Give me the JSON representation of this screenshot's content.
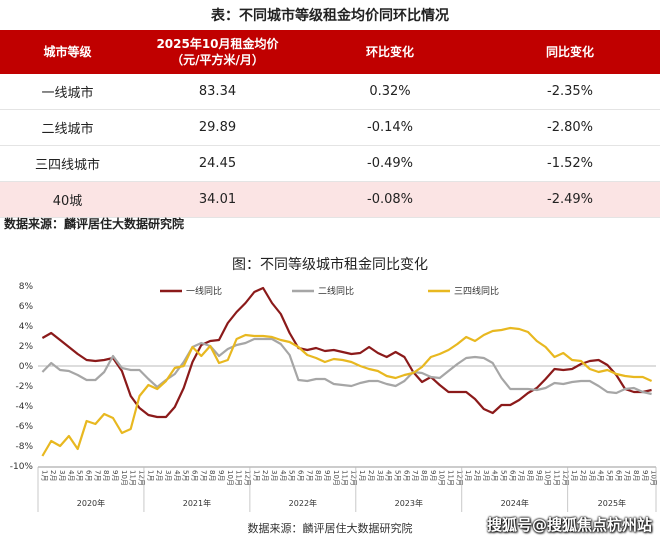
{
  "table": {
    "title": "表：不同城市等级租金均价同环比情况",
    "headers": [
      "城市等级",
      "2025年10月租金均价",
      "（元/平方米/月）",
      "环比变化",
      "同比变化"
    ],
    "rows": [
      {
        "city": "一线城市",
        "price": "83.34",
        "mom": "0.32%",
        "yoy": "-2.35%"
      },
      {
        "city": "二线城市",
        "price": "29.89",
        "mom": "-0.14%",
        "yoy": "-2.80%"
      },
      {
        "city": "三四线城市",
        "price": "24.45",
        "mom": "-0.49%",
        "yoy": "-1.52%"
      },
      {
        "city": "40城",
        "price": "34.01",
        "mom": "-0.08%",
        "yoy": "-2.49%"
      }
    ],
    "source": "数据来源：麟评居住大数据研究院"
  },
  "chart_title": "图：不同等级城市租金同比变化",
  "chart_source": "数据来源：麟评居住大数据研究院",
  "watermark": "搜狐号@搜狐焦点杭州站",
  "colors": {
    "header_bg": "#c00000",
    "tier1": "#8b1a1a",
    "tier2": "#a6a6a6",
    "tier34": "#e8b820",
    "highlight_row": "#fbe4e4"
  },
  "chart_data": {
    "type": "line",
    "title": "图：不同等级城市租金同比变化",
    "xlabel": "",
    "ylabel": "",
    "ylim": [
      -10,
      8
    ],
    "yticks": [
      "-10%",
      "-8%",
      "-6%",
      "-4%",
      "-2%",
      "0%",
      "2%",
      "4%",
      "6%",
      "8%"
    ],
    "grid": false,
    "legend_position": "top",
    "month_labels": [
      "1月",
      "2月",
      "3月",
      "4月",
      "5月",
      "6月",
      "7月",
      "8月",
      "9月",
      "10月",
      "11月",
      "12月",
      "1月",
      "2月",
      "3月",
      "4月",
      "5月",
      "6月",
      "7月",
      "8月",
      "9月",
      "10月",
      "11月",
      "12月",
      "1月",
      "2月",
      "3月",
      "4月",
      "5月",
      "6月",
      "7月",
      "8月",
      "9月",
      "10月",
      "11月",
      "12月",
      "1月",
      "2月",
      "3月",
      "4月",
      "5月",
      "6月",
      "7月",
      "8月",
      "9月",
      "10月",
      "11月",
      "12月",
      "1月",
      "2月",
      "3月",
      "4月",
      "5月",
      "6月",
      "7月",
      "8月",
      "9月",
      "10月",
      "11月",
      "12月",
      "1月",
      "2月",
      "3月",
      "4月",
      "5月",
      "6月",
      "7月",
      "8月",
      "9月",
      "10月"
    ],
    "year_labels": [
      "2020年",
      "2021年",
      "2022年",
      "2023年",
      "2024年",
      "2025年"
    ],
    "series": [
      {
        "name": "一线同比",
        "color": "#8b1a1a",
        "values": [
          2.8,
          3.3,
          2.6,
          1.9,
          1.2,
          0.6,
          0.5,
          0.6,
          0.8,
          -0.5,
          -3.0,
          -4.2,
          -4.9,
          -5.1,
          -5.1,
          -4.1,
          -2.2,
          0.4,
          2.1,
          2.5,
          2.6,
          4.3,
          5.4,
          6.3,
          7.4,
          7.8,
          6.3,
          5.2,
          3.3,
          1.8,
          1.6,
          1.8,
          1.5,
          1.6,
          1.4,
          1.2,
          1.3,
          1.9,
          1.3,
          0.9,
          1.4,
          0.9,
          -0.6,
          -1.6,
          -1.1,
          -1.9,
          -2.6,
          -2.6,
          -2.6,
          -3.3,
          -4.3,
          -4.7,
          -3.9,
          -3.9,
          -3.4,
          -2.7,
          -2.2,
          -1.3,
          -0.3,
          -0.4,
          -0.3,
          0.2,
          0.5,
          0.6,
          0.1,
          -0.9,
          -2.3,
          -2.6,
          -2.6,
          -2.4
        ]
      },
      {
        "name": "二线同比",
        "color": "#a6a6a6",
        "values": [
          -0.6,
          0.3,
          -0.4,
          -0.5,
          -0.9,
          -1.4,
          -1.4,
          -0.6,
          1.0,
          -0.2,
          -0.4,
          -0.4,
          -1.3,
          -2.1,
          -1.4,
          -0.8,
          0.4,
          1.9,
          2.3,
          2.0,
          1.0,
          1.7,
          2.1,
          2.3,
          2.7,
          2.7,
          2.7,
          2.2,
          1.1,
          -1.4,
          -1.5,
          -1.3,
          -1.3,
          -1.8,
          -1.9,
          -2.0,
          -1.7,
          -1.5,
          -1.5,
          -1.8,
          -2.0,
          -1.5,
          -0.6,
          -0.7,
          -1.1,
          -1.2,
          -0.5,
          0.2,
          0.8,
          0.9,
          0.8,
          0.3,
          -1.2,
          -2.3,
          -2.3,
          -2.3,
          -2.4,
          -2.2,
          -1.7,
          -1.8,
          -1.6,
          -1.5,
          -1.5,
          -2.0,
          -2.6,
          -2.7,
          -2.3,
          -2.2,
          -2.6,
          -2.8
        ]
      },
      {
        "name": "三四线同比",
        "color": "#e8b820",
        "values": [
          -9.0,
          -7.5,
          -8.0,
          -7.0,
          -8.3,
          -5.5,
          -5.8,
          -4.8,
          -5.2,
          -6.7,
          -6.3,
          -3.0,
          -1.9,
          -2.3,
          -1.5,
          -0.2,
          0.0,
          1.9,
          1.0,
          2.0,
          0.3,
          0.6,
          2.7,
          3.1,
          3.0,
          3.0,
          2.9,
          2.6,
          2.4,
          1.9,
          1.1,
          0.8,
          0.4,
          0.7,
          0.6,
          0.4,
          0.0,
          -0.3,
          -0.5,
          -1.0,
          -1.2,
          -0.9,
          -0.7,
          -0.1,
          0.9,
          1.2,
          1.6,
          2.2,
          2.9,
          2.5,
          3.1,
          3.5,
          3.6,
          3.8,
          3.7,
          3.4,
          2.5,
          1.9,
          0.9,
          1.3,
          0.6,
          0.5,
          -0.3,
          -0.6,
          -0.4,
          -0.8,
          -1.0,
          -1.1,
          -1.1,
          -1.5
        ]
      }
    ]
  }
}
